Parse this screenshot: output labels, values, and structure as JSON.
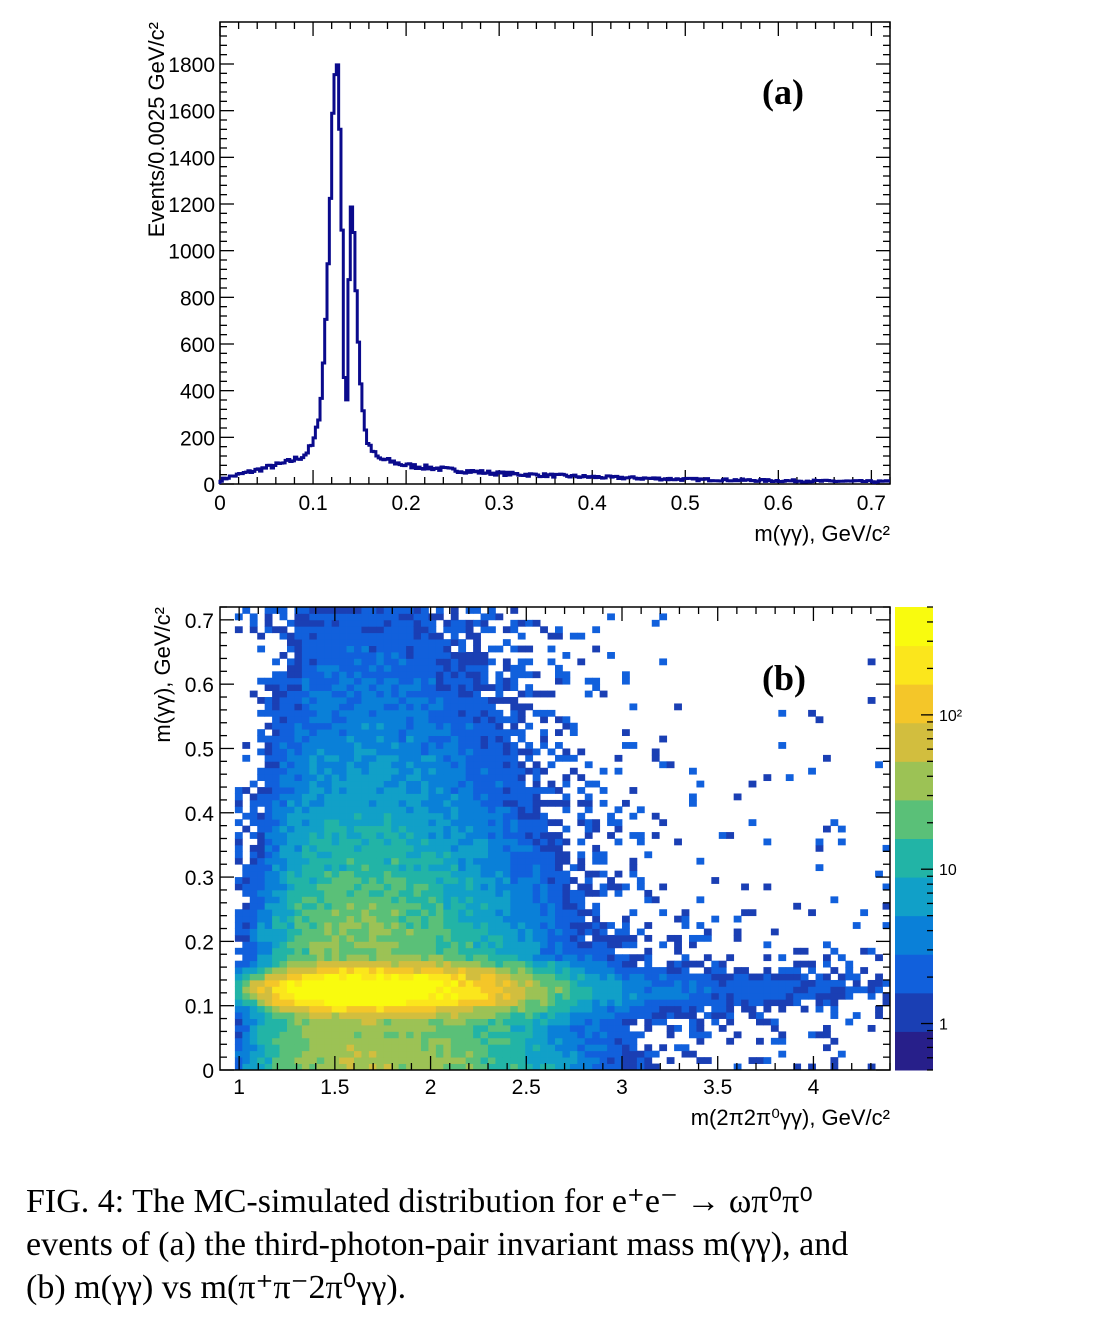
{
  "chart_data": [
    {
      "type": "histogram",
      "panel_label": "(a)",
      "xlabel": "m(γγ), GeV/c²",
      "ylabel": "Events/0.0025 GeV/c²",
      "xlim": [
        0,
        0.72
      ],
      "ylim": [
        0,
        1980
      ],
      "x_ticks": [
        "0",
        "0.1",
        "0.2",
        "0.3",
        "0.4",
        "0.5",
        "0.6",
        "0.7"
      ],
      "y_ticks": [
        "0",
        "200",
        "400",
        "600",
        "800",
        "1000",
        "1200",
        "1400",
        "1600",
        "1800"
      ],
      "bin_width": 0.0025,
      "line_color": "#0a0a8c",
      "profile_points": [
        [
          0.0,
          15
        ],
        [
          0.01,
          30
        ],
        [
          0.03,
          50
        ],
        [
          0.05,
          70
        ],
        [
          0.07,
          90
        ],
        [
          0.09,
          120
        ],
        [
          0.1,
          170
        ],
        [
          0.105,
          250
        ],
        [
          0.11,
          420
        ],
        [
          0.115,
          800
        ],
        [
          0.12,
          1400
        ],
        [
          0.1225,
          1700
        ],
        [
          0.125,
          1900
        ],
        [
          0.1275,
          1720
        ],
        [
          0.13,
          1350
        ],
        [
          0.1325,
          800
        ],
        [
          0.135,
          70
        ],
        [
          0.1375,
          650
        ],
        [
          0.14,
          1150
        ],
        [
          0.1425,
          1240
        ],
        [
          0.145,
          950
        ],
        [
          0.15,
          500
        ],
        [
          0.155,
          250
        ],
        [
          0.16,
          160
        ],
        [
          0.17,
          110
        ],
        [
          0.2,
          80
        ],
        [
          0.25,
          60
        ],
        [
          0.3,
          45
        ],
        [
          0.4,
          30
        ],
        [
          0.5,
          20
        ],
        [
          0.6,
          14
        ],
        [
          0.72,
          10
        ]
      ]
    },
    {
      "type": "heatmap",
      "panel_label": "(b)",
      "xlabel": "m(2π2π⁰γγ), GeV/c²",
      "ylabel": "m(γγ), GeV/c²",
      "xlim": [
        0.9,
        4.4
      ],
      "ylim": [
        0,
        0.72
      ],
      "x_ticks": [
        "1",
        "1.5",
        "2",
        "2.5",
        "3",
        "3.5",
        "4"
      ],
      "y_ticks": [
        "0",
        "0.1",
        "0.2",
        "0.3",
        "0.4",
        "0.5",
        "0.6",
        "0.7"
      ],
      "z_scale": "log",
      "z_range": [
        0.5,
        500
      ],
      "z_ticks": [
        "1",
        "10",
        "10²"
      ],
      "bins": [
        90,
        72
      ],
      "band_center_y": 0.125,
      "band_peak_x": 1.62,
      "palette": [
        "#271f8a",
        "#1a3fb4",
        "#1160dc",
        "#0a80d8",
        "#11a0c8",
        "#22b4a6",
        "#5ac078",
        "#9cc255",
        "#d2be3e",
        "#f4c629",
        "#fbe61c",
        "#f9fb0e"
      ]
    }
  ],
  "caption": {
    "line1": "FIG. 4:   The MC-simulated distribution for e⁺e⁻ → ωπ⁰π⁰",
    "line2": "events of (a) the third-photon-pair invariant mass m(γγ), and",
    "line3": "(b) m(γγ) vs m(π⁺π⁻2π⁰γγ)."
  }
}
